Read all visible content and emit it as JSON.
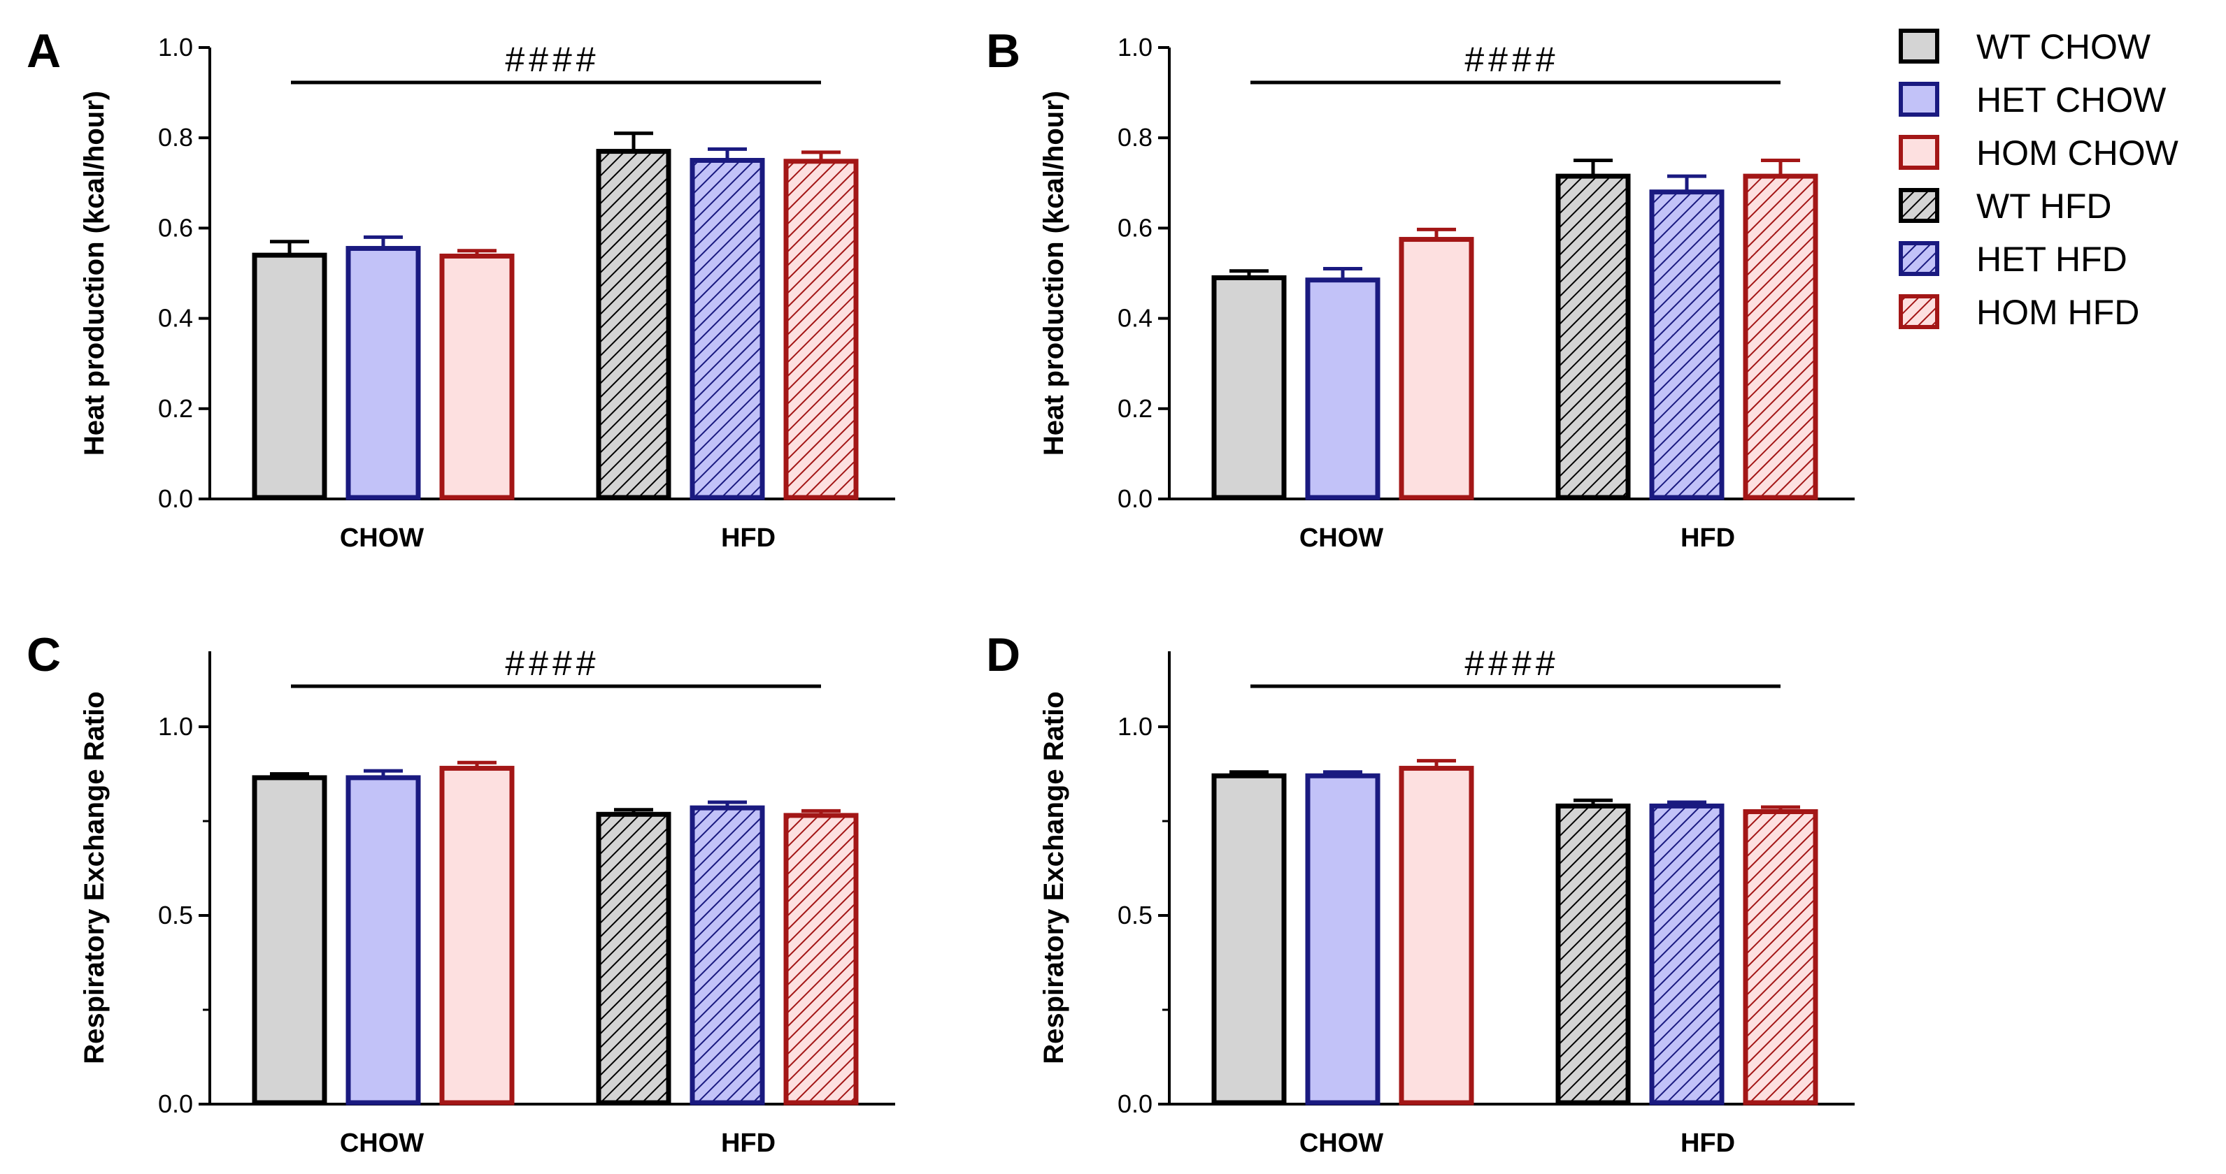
{
  "chart_data": [
    {
      "panel": "A",
      "type": "bar",
      "ylabel": "Heat production (kcal/hour)",
      "ylim": [
        0,
        1.0
      ],
      "yticks": [
        "0.0",
        "0.2",
        "0.4",
        "0.6",
        "0.8",
        "1.0"
      ],
      "ytick_values": [
        0,
        0.2,
        0.4,
        0.6,
        0.8,
        1.0
      ],
      "minor_ticks": false,
      "categories": [
        "CHOW",
        "HFD"
      ],
      "significance": "####",
      "series": [
        {
          "name": "WT CHOW",
          "category": "CHOW",
          "value": 0.54,
          "error": 0.03
        },
        {
          "name": "HET CHOW",
          "category": "CHOW",
          "value": 0.555,
          "error": 0.025
        },
        {
          "name": "HOM CHOW",
          "category": "CHOW",
          "value": 0.538,
          "error": 0.012
        },
        {
          "name": "WT HFD",
          "category": "HFD",
          "value": 0.77,
          "error": 0.04
        },
        {
          "name": "HET HFD",
          "category": "HFD",
          "value": 0.75,
          "error": 0.025
        },
        {
          "name": "HOM HFD",
          "category": "HFD",
          "value": 0.748,
          "error": 0.02
        }
      ]
    },
    {
      "panel": "B",
      "type": "bar",
      "ylabel": "Heat production (kcal/hour)",
      "ylim": [
        0,
        1.0
      ],
      "yticks": [
        "0.0",
        "0.2",
        "0.4",
        "0.6",
        "0.8",
        "1.0"
      ],
      "ytick_values": [
        0,
        0.2,
        0.4,
        0.6,
        0.8,
        1.0
      ],
      "minor_ticks": false,
      "categories": [
        "CHOW",
        "HFD"
      ],
      "significance": "####",
      "series": [
        {
          "name": "WT CHOW",
          "category": "CHOW",
          "value": 0.49,
          "error": 0.015
        },
        {
          "name": "HET CHOW",
          "category": "CHOW",
          "value": 0.485,
          "error": 0.025
        },
        {
          "name": "HOM CHOW",
          "category": "CHOW",
          "value": 0.575,
          "error": 0.022
        },
        {
          "name": "WT HFD",
          "category": "HFD",
          "value": 0.715,
          "error": 0.035
        },
        {
          "name": "HET HFD",
          "category": "HFD",
          "value": 0.68,
          "error": 0.035
        },
        {
          "name": "HOM HFD",
          "category": "HFD",
          "value": 0.715,
          "error": 0.035
        }
      ]
    },
    {
      "panel": "C",
      "type": "bar",
      "ylabel": "Respiratory Exchange Ratio",
      "ylim": [
        0,
        1.2
      ],
      "yticks": [
        "0.0",
        "0.5",
        "1.0"
      ],
      "ytick_values": [
        0,
        0.5,
        1.0
      ],
      "minor_ticks": true,
      "categories": [
        "CHOW",
        "HFD"
      ],
      "significance": "####",
      "series": [
        {
          "name": "WT CHOW",
          "category": "CHOW",
          "value": 0.865,
          "error": 0.01
        },
        {
          "name": "HET CHOW",
          "category": "CHOW",
          "value": 0.865,
          "error": 0.018
        },
        {
          "name": "HOM CHOW",
          "category": "CHOW",
          "value": 0.89,
          "error": 0.015
        },
        {
          "name": "WT HFD",
          "category": "HFD",
          "value": 0.768,
          "error": 0.012
        },
        {
          "name": "HET HFD",
          "category": "HFD",
          "value": 0.785,
          "error": 0.015
        },
        {
          "name": "HOM HFD",
          "category": "HFD",
          "value": 0.765,
          "error": 0.012
        }
      ]
    },
    {
      "panel": "D",
      "type": "bar",
      "ylabel": "Respiratory Exchange Ratio",
      "ylim": [
        0,
        1.2
      ],
      "yticks": [
        "0.0",
        "0.5",
        "1.0"
      ],
      "ytick_values": [
        0,
        0.5,
        1.0
      ],
      "minor_ticks": true,
      "categories": [
        "CHOW",
        "HFD"
      ],
      "significance": "####",
      "series": [
        {
          "name": "WT CHOW",
          "category": "CHOW",
          "value": 0.87,
          "error": 0.01
        },
        {
          "name": "HET CHOW",
          "category": "CHOW",
          "value": 0.87,
          "error": 0.01
        },
        {
          "name": "HOM CHOW",
          "category": "CHOW",
          "value": 0.89,
          "error": 0.02
        },
        {
          "name": "WT HFD",
          "category": "HFD",
          "value": 0.79,
          "error": 0.015
        },
        {
          "name": "HET HFD",
          "category": "HFD",
          "value": 0.79,
          "error": 0.01
        },
        {
          "name": "HOM HFD",
          "category": "HFD",
          "value": 0.775,
          "error": 0.012
        }
      ]
    }
  ],
  "legend": {
    "position": "top-right",
    "items": [
      {
        "label": "WT CHOW",
        "fill": "#d4d4d4",
        "stroke": "#000000",
        "hatched": false
      },
      {
        "label": "HET CHOW",
        "fill": "#c2c2f8",
        "stroke": "#1a1a80",
        "hatched": false
      },
      {
        "label": "HOM CHOW",
        "fill": "#fde0e0",
        "stroke": "#a31616",
        "hatched": false
      },
      {
        "label": "WT HFD",
        "fill": "#d4d4d4",
        "stroke": "#000000",
        "hatched": true
      },
      {
        "label": "HET HFD",
        "fill": "#c2c2f8",
        "stroke": "#1a1a80",
        "hatched": true
      },
      {
        "label": "HOM HFD",
        "fill": "#fde0e0",
        "stroke": "#a31616",
        "hatched": true
      }
    ]
  }
}
